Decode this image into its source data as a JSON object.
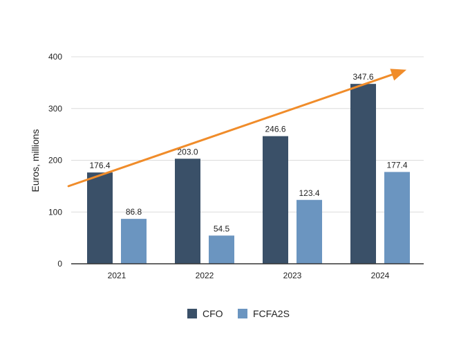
{
  "chart_data": {
    "type": "bar",
    "categories": [
      "2021",
      "2022",
      "2023",
      "2024"
    ],
    "series": [
      {
        "name": "CFO",
        "values": [
          176.4,
          203.0,
          246.6,
          347.6
        ],
        "labels": [
          "176.4",
          "203.0",
          "246.6",
          "347.6"
        ],
        "color": "#3a5068"
      },
      {
        "name": "FCFA2S",
        "values": [
          86.8,
          54.5,
          123.4,
          177.4
        ],
        "labels": [
          "86.8",
          "54.5",
          "123.4",
          "177.4"
        ],
        "color": "#6b95c0"
      }
    ],
    "title": "",
    "xlabel": "",
    "ylabel": "Euros, millions",
    "ylim": [
      0,
      400
    ],
    "yticks": [
      "0",
      "100",
      "200",
      "300",
      "400"
    ],
    "grid": true,
    "legend_position": "bottom-center",
    "trend_arrow": {
      "color": "#f08c2a",
      "from": [
        -0.55,
        150
      ],
      "to": [
        3.3,
        375
      ]
    }
  }
}
